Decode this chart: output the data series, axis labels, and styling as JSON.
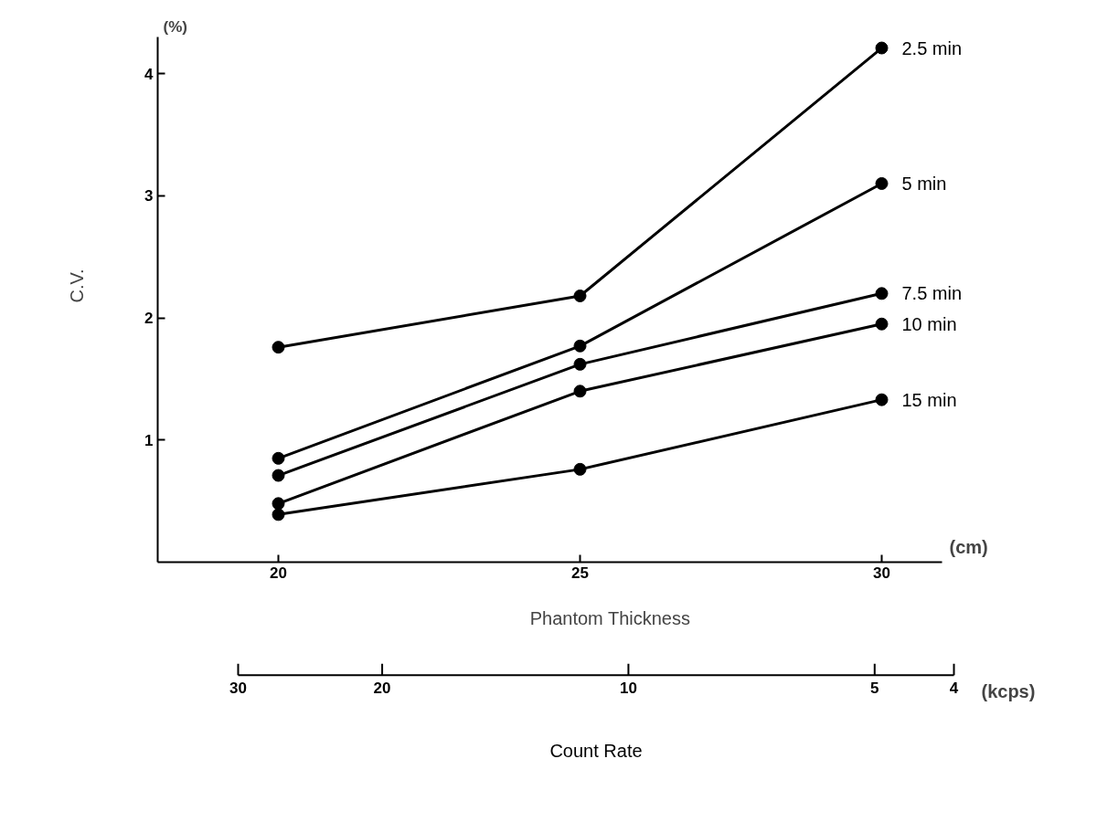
{
  "chart_data": {
    "type": "line",
    "xlabel": "Phantom Thickness",
    "ylabel": "C.V.",
    "x2label": "Count Rate",
    "x": [
      20,
      25,
      30
    ],
    "xlim": [
      18,
      31
    ],
    "xticks": [
      20,
      25,
      30
    ],
    "ylim": [
      0,
      4.3
    ],
    "yticks": [
      1,
      2,
      3,
      4
    ],
    "x2lim": [
      30,
      4
    ],
    "x2ticks": [
      30,
      20,
      10,
      5,
      4
    ],
    "log": "x2",
    "marker": "circle",
    "line_style": "solid",
    "grid": false,
    "annotations": [
      "(%)",
      "(cm)",
      "(kcps)"
    ],
    "series": [
      {
        "name": "2.5 min",
        "color": "#000000",
        "values": [
          1.76,
          2.18,
          4.21
        ]
      },
      {
        "name": "5 min",
        "color": "#000000",
        "values": [
          0.85,
          1.77,
          3.1
        ]
      },
      {
        "name": "7.5 min",
        "color": "#000000",
        "values": [
          0.71,
          1.62,
          2.2
        ]
      },
      {
        "name": "10 min",
        "color": "#000000",
        "values": [
          0.48,
          1.4,
          1.95
        ]
      },
      {
        "name": "15 min",
        "color": "#000000",
        "values": [
          0.39,
          0.76,
          1.33
        ]
      }
    ]
  }
}
